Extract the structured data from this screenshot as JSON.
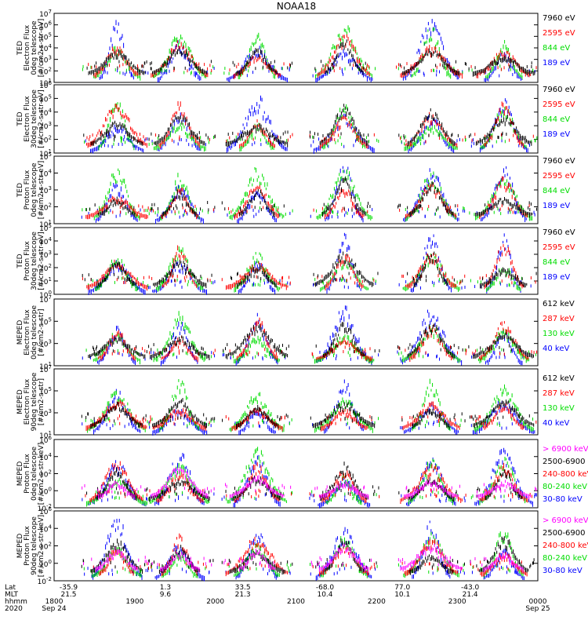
{
  "chart_data": {
    "title": "NOAA18",
    "type": "scatter",
    "x_axis": {
      "rows": [
        {
          "label": "Lat",
          "values": [
            "-35.9",
            "1.3",
            "33.5",
            "-68.0",
            "77.0",
            "-43.0"
          ]
        },
        {
          "label": "MLT",
          "values": [
            "21.5",
            "9.6",
            "21.3",
            "10.4",
            "10.1",
            "21.4"
          ]
        },
        {
          "label": "hhmm",
          "values": [
            "1800",
            "1900",
            "2000",
            "2100",
            "2200",
            "2300",
            "0000"
          ]
        },
        {
          "label": "2020",
          "values": [
            "Sep 24",
            "Sep 25"
          ]
        }
      ],
      "time_range": [
        "1800",
        "0000"
      ]
    },
    "panels": [
      {
        "ylabel": [
          "TED",
          "Electron Flux",
          "0deg telescope",
          "[#/cm2-s-str-eV]"
        ],
        "yticks": [
          "10^1",
          "10^2",
          "10^3",
          "10^4",
          "10^5",
          "10^6",
          "10^7"
        ],
        "ylog": [
          1,
          7
        ],
        "channels": [
          {
            "label": "7960 eV",
            "color": "#000000"
          },
          {
            "label": "2595 eV",
            "color": "#ff0000"
          },
          {
            "label": "844 eV",
            "color": "#00dd00"
          },
          {
            "label": "189 eV",
            "color": "#0000ff"
          }
        ]
      },
      {
        "ylabel": [
          "TED",
          "Electron Flux",
          "30deg telescope",
          "[#/cm2-s-str-eV]"
        ],
        "yticks": [
          "10^1",
          "10^2",
          "10^3",
          "10^4",
          "10^5",
          "10^6"
        ],
        "ylog": [
          1,
          6
        ],
        "channels": [
          {
            "label": "7960 eV",
            "color": "#000000"
          },
          {
            "label": "2595 eV",
            "color": "#ff0000"
          },
          {
            "label": "844 eV",
            "color": "#00dd00"
          },
          {
            "label": "189 eV",
            "color": "#0000ff"
          }
        ]
      },
      {
        "ylabel": [
          "TED",
          "Proton Flux",
          "0deg telescope",
          "[#/cm2-s-str-eV]"
        ],
        "yticks": [
          "10^1",
          "10^2",
          "10^3",
          "10^4",
          "10^5"
        ],
        "ylog": [
          1,
          5
        ],
        "channels": [
          {
            "label": "7960 eV",
            "color": "#000000"
          },
          {
            "label": "2595 eV",
            "color": "#ff0000"
          },
          {
            "label": "844 eV",
            "color": "#00dd00"
          },
          {
            "label": "189 eV",
            "color": "#0000ff"
          }
        ]
      },
      {
        "ylabel": [
          "TED",
          "Proton Flux",
          "30deg telescope",
          "[#/cm2-s-str-eV]"
        ],
        "yticks": [
          "10^0",
          "10^1",
          "10^2",
          "10^3",
          "10^4",
          "10^5"
        ],
        "ylog": [
          0,
          5
        ],
        "channels": [
          {
            "label": "7960 eV",
            "color": "#000000"
          },
          {
            "label": "2595 eV",
            "color": "#ff0000"
          },
          {
            "label": "844 eV",
            "color": "#00dd00"
          },
          {
            "label": "189 eV",
            "color": "#0000ff"
          }
        ]
      },
      {
        "ylabel": [
          "MEPED",
          "Electron Flux",
          "0deg telescope",
          "[#/cm2-s-str]"
        ],
        "yticks": [
          "10^1",
          "10^3",
          "10^5",
          "10^7"
        ],
        "ylog": [
          1,
          7
        ],
        "channels": [
          {
            "label": "612 keV",
            "color": "#000000"
          },
          {
            "label": "287 keV",
            "color": "#ff0000"
          },
          {
            "label": "130 keV",
            "color": "#00dd00"
          },
          {
            "label": "40 keV",
            "color": "#0000ff"
          }
        ]
      },
      {
        "ylabel": [
          "MEPED",
          "Electron Flux",
          "90deg telescope",
          "[#/cm2-s-str]"
        ],
        "yticks": [
          "10^1",
          "10^3",
          "10^5",
          "10^7"
        ],
        "ylog": [
          1,
          7
        ],
        "channels": [
          {
            "label": "612 keV",
            "color": "#000000"
          },
          {
            "label": "287 keV",
            "color": "#ff0000"
          },
          {
            "label": "130 keV",
            "color": "#00dd00"
          },
          {
            "label": "40 keV",
            "color": "#0000ff"
          }
        ]
      },
      {
        "ylabel": [
          "MEPED",
          "Proton Flux",
          "0deg telescope",
          "[#/cm2-s-str-keV]"
        ],
        "yticks": [
          "10^-2",
          "10^0",
          "10^2",
          "10^4",
          "10^6"
        ],
        "ylog": [
          -2,
          6
        ],
        "channels": [
          {
            "label": "> 6900 keV",
            "color": "#ff00ff"
          },
          {
            "label": "2500-6900",
            "color": "#000000"
          },
          {
            "label": "240-800 keV",
            "color": "#ff0000"
          },
          {
            "label": "80-240 keV",
            "color": "#00dd00"
          },
          {
            "label": "30-80 keV",
            "color": "#0000ff"
          }
        ]
      },
      {
        "ylabel": [
          "MEPED",
          "Proton Flux",
          "90deg telescope",
          "[#/cm2-s-str-keV]"
        ],
        "yticks": [
          "10^-2",
          "10^0",
          "10^2",
          "10^4",
          "10^6"
        ],
        "ylog": [
          -2,
          6
        ],
        "channels": [
          {
            "label": "> 6900 keV",
            "color": "#ff00ff"
          },
          {
            "label": "2500-6900",
            "color": "#000000"
          },
          {
            "label": "240-800 keV",
            "color": "#ff0000"
          },
          {
            "label": "80-240 keV",
            "color": "#00dd00"
          },
          {
            "label": "30-80 keV",
            "color": "#0000ff"
          }
        ]
      }
    ]
  }
}
